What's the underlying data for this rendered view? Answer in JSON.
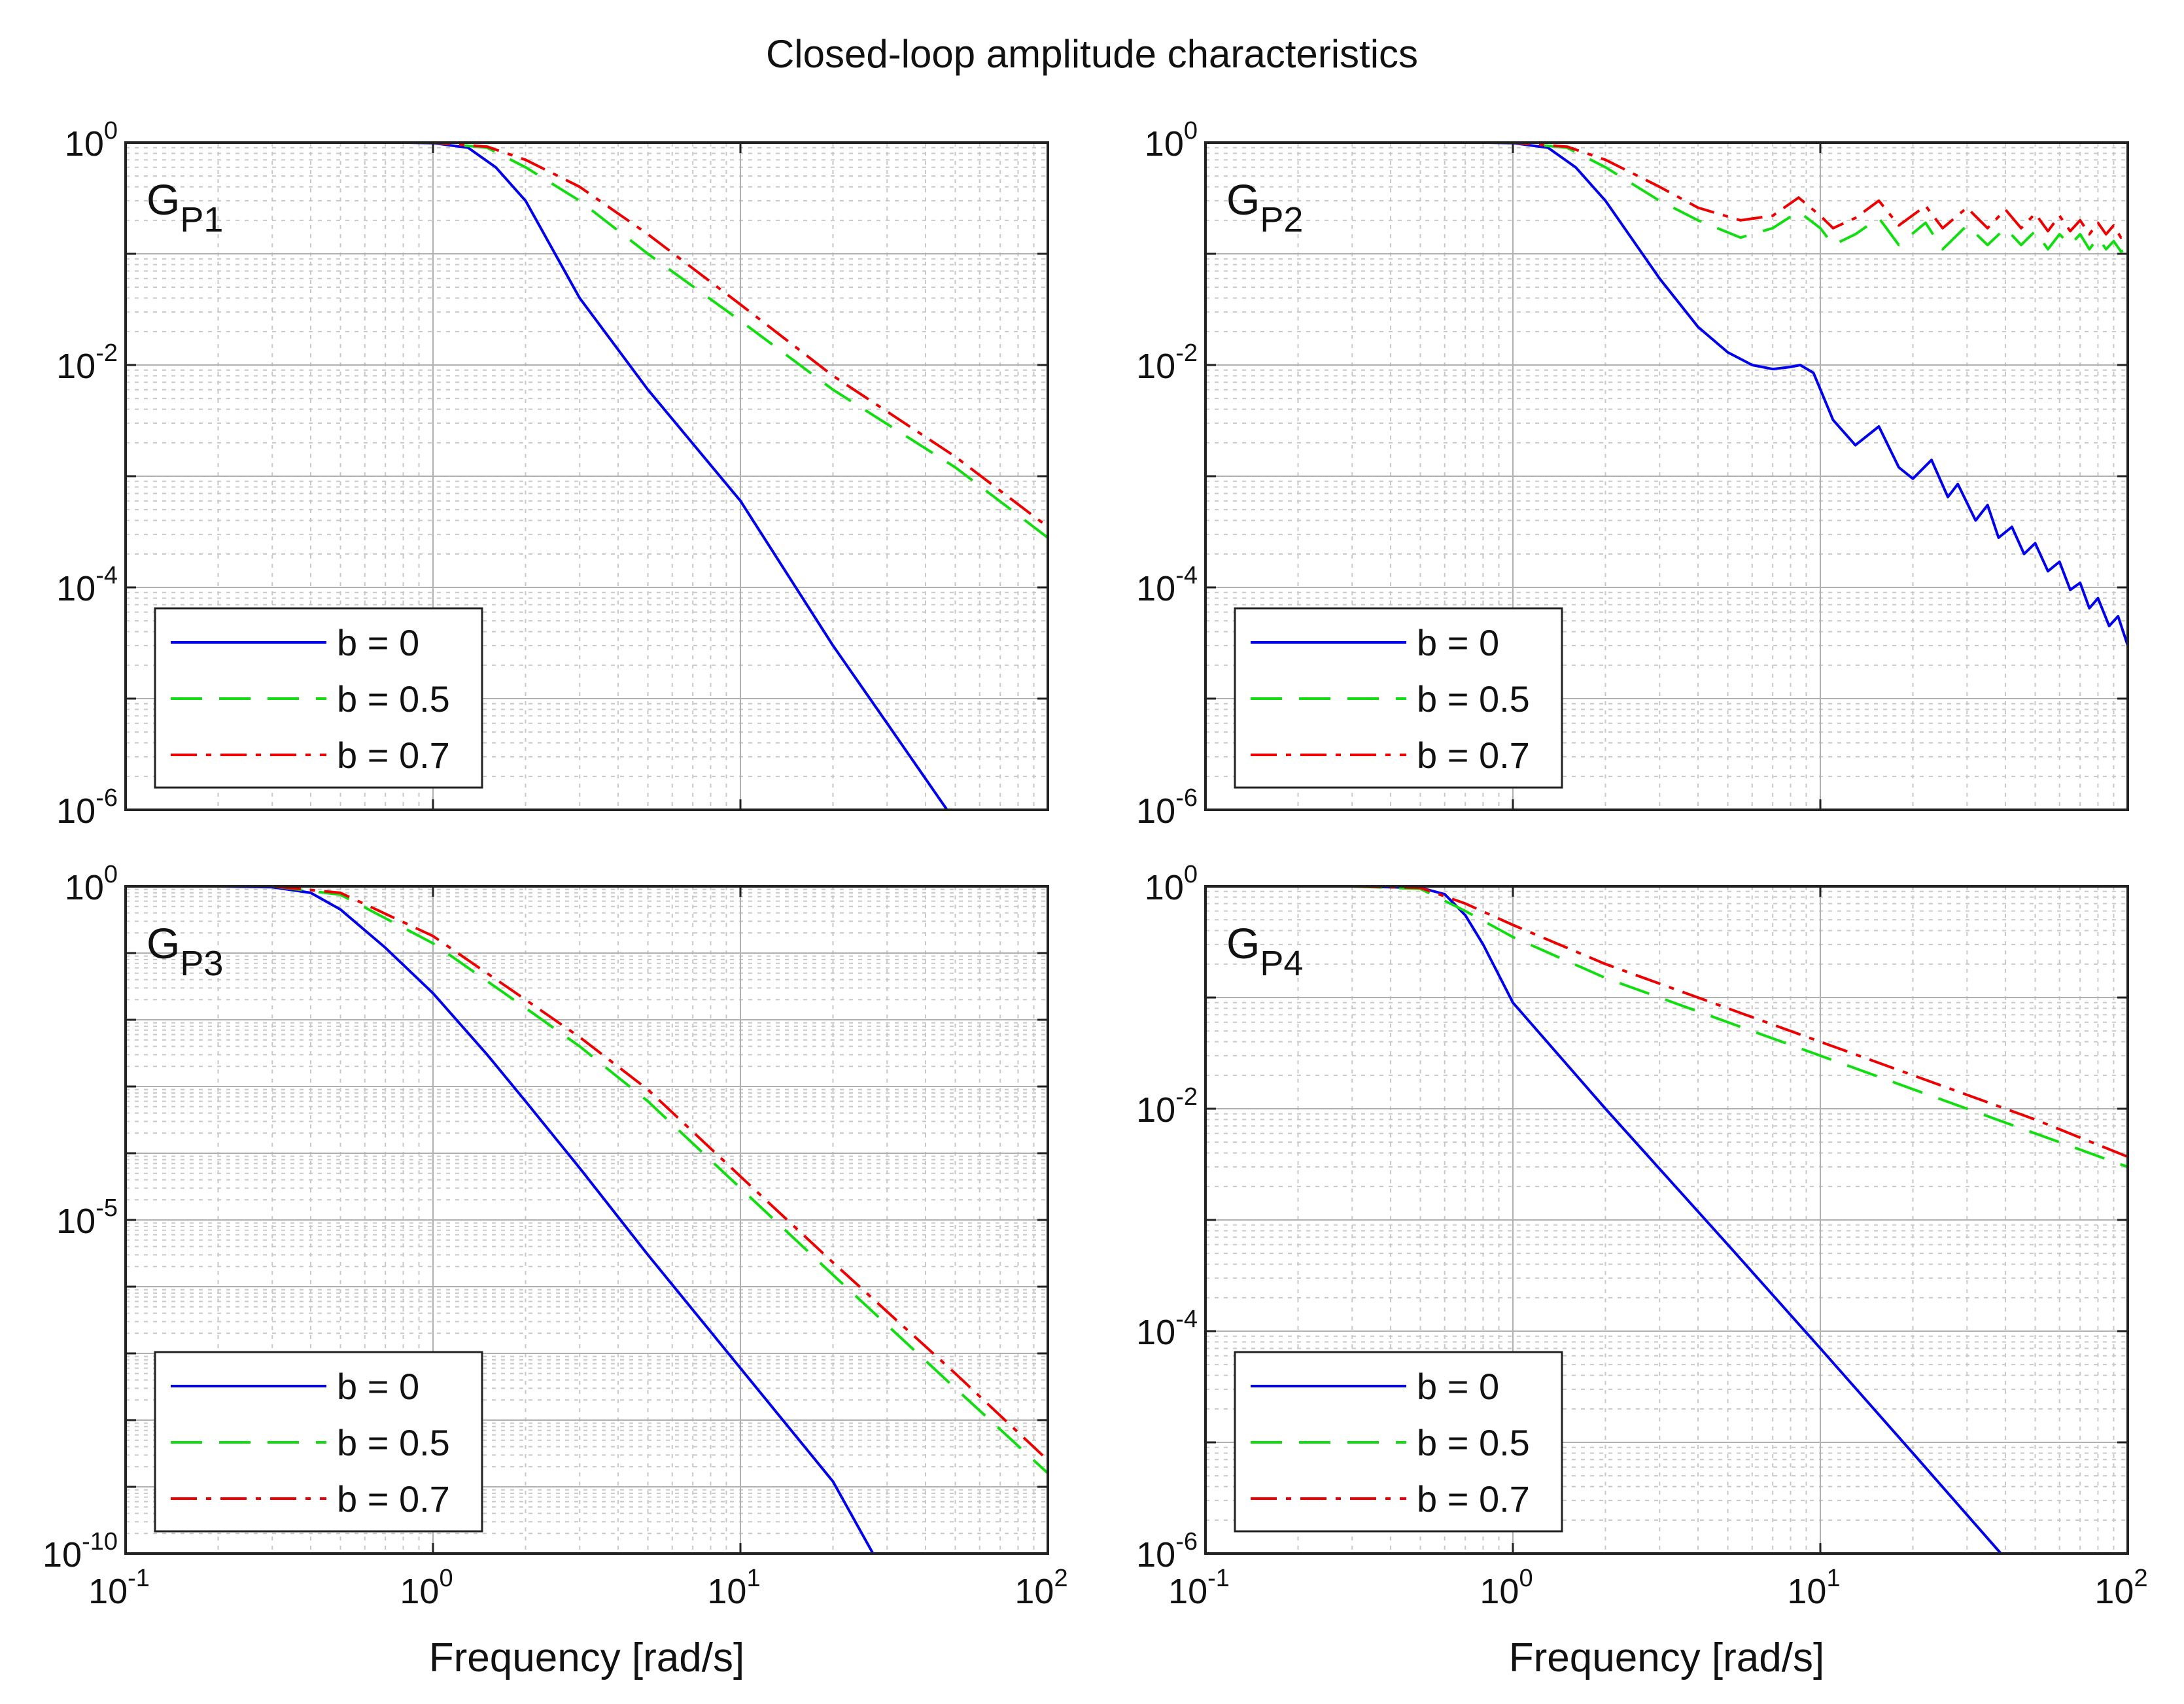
{
  "figure": {
    "title": "Closed-loop amplitude characteristics"
  },
  "chart_data": [
    {
      "type": "line",
      "panel": "top-left",
      "label_main": "G",
      "label_sub": "P1",
      "xlabel": "",
      "ylabel": "",
      "xscale": "log",
      "yscale": "log",
      "xlim": [
        0.1,
        100
      ],
      "ylim": [
        1e-06,
        1
      ],
      "grid": true,
      "legend_position": "bottom-left",
      "x_ticks": [
        {
          "base": "10",
          "exp": "-1"
        },
        {
          "base": "10",
          "exp": "0"
        },
        {
          "base": "10",
          "exp": "1"
        },
        {
          "base": "10",
          "exp": "2"
        }
      ],
      "y_ticks": [
        {
          "base": "10",
          "exp": "0"
        },
        {
          "base": "10",
          "exp": "-2"
        },
        {
          "base": "10",
          "exp": "-4"
        },
        {
          "base": "10",
          "exp": "-6"
        }
      ],
      "series": [
        {
          "name": "b = 0",
          "color": "#0000ee",
          "dash": "solid",
          "x": [
            0.1,
            0.3,
            0.5,
            0.8,
            1.0,
            1.3,
            1.6,
            2.0,
            3.0,
            5.0,
            10,
            20,
            30,
            47
          ],
          "y": [
            1.0,
            1.0,
            1.0,
            1.0,
            0.99,
            0.9,
            0.6,
            0.3,
            0.04,
            0.006,
            0.0006,
            3e-05,
            6e-06,
            1e-06
          ]
        },
        {
          "name": "b = 0.5",
          "color": "#11dd11",
          "dash": "dashed",
          "x": [
            0.1,
            0.5,
            1.0,
            1.5,
            2.0,
            3.0,
            5.0,
            10,
            20,
            50,
            100
          ],
          "y": [
            1.0,
            1.0,
            1.0,
            0.9,
            0.6,
            0.3,
            0.1,
            0.025,
            0.006,
            0.0012,
            0.00028
          ]
        },
        {
          "name": "b = 0.7",
          "color": "#ee0000",
          "dash": "dashdot",
          "x": [
            0.1,
            0.5,
            1.0,
            1.5,
            2.0,
            3.0,
            5.0,
            10,
            20,
            50,
            100
          ],
          "y": [
            1.0,
            1.0,
            1.0,
            0.92,
            0.7,
            0.4,
            0.15,
            0.035,
            0.008,
            0.0015,
            0.00035
          ]
        }
      ]
    },
    {
      "type": "line",
      "panel": "top-right",
      "label_main": "G",
      "label_sub": "P2",
      "xlabel": "",
      "ylabel": "",
      "xscale": "log",
      "yscale": "log",
      "xlim": [
        0.1,
        100
      ],
      "ylim": [
        1e-06,
        1
      ],
      "grid": true,
      "legend_position": "bottom-left",
      "x_ticks": [
        {
          "base": "10",
          "exp": "-1"
        },
        {
          "base": "10",
          "exp": "0"
        },
        {
          "base": "10",
          "exp": "1"
        },
        {
          "base": "10",
          "exp": "2"
        }
      ],
      "y_ticks": [
        {
          "base": "10",
          "exp": "0"
        },
        {
          "base": "10",
          "exp": "-2"
        },
        {
          "base": "10",
          "exp": "-4"
        },
        {
          "base": "10",
          "exp": "-6"
        }
      ],
      "series": [
        {
          "name": "b = 0",
          "color": "#0000ee",
          "dash": "solid",
          "x": [
            0.1,
            0.3,
            0.5,
            0.8,
            1.0,
            1.3,
            1.6,
            2.0,
            3.0,
            4.0,
            5.0,
            6.0,
            7.0,
            8.0,
            8.6,
            9.5,
            11.0,
            13.0,
            15.5,
            18.0,
            20.0,
            23.0,
            26.0,
            28.0,
            32.0,
            35.0,
            38.0,
            42.0,
            46.0,
            50.0,
            55.0,
            60.0,
            65.0,
            70.0,
            75.0,
            80.0,
            87.0,
            93.0,
            100
          ],
          "y": [
            1.0,
            1.0,
            1.0,
            1.0,
            0.99,
            0.9,
            0.6,
            0.3,
            0.06,
            0.022,
            0.013,
            0.01,
            0.0092,
            0.0096,
            0.01,
            0.0085,
            0.0032,
            0.0019,
            0.0028,
            0.0012,
            0.00095,
            0.0014,
            0.00065,
            0.00085,
            0.0004,
            0.00055,
            0.00028,
            0.00035,
            0.0002,
            0.00025,
            0.00014,
            0.00017,
            9.5e-05,
            0.00011,
            6.5e-05,
            8e-05,
            4.5e-05,
            5.5e-05,
            3e-05
          ]
        },
        {
          "name": "b = 0.5",
          "color": "#11dd11",
          "dash": "dashed",
          "x": [
            0.1,
            0.5,
            1.0,
            1.5,
            2.0,
            3.0,
            4.0,
            5.5,
            7.0,
            8.5,
            10.0,
            11.0,
            13.0,
            15.5,
            18.0,
            22.0,
            25.0,
            30.0,
            35.0,
            40.0,
            45.0,
            50.0,
            55.0,
            60.0,
            65.0,
            70.0,
            75.0,
            80.0,
            85.0,
            90.0,
            95.0,
            100
          ],
          "y": [
            1.0,
            1.0,
            1.0,
            0.9,
            0.6,
            0.3,
            0.2,
            0.14,
            0.17,
            0.24,
            0.17,
            0.12,
            0.15,
            0.21,
            0.12,
            0.19,
            0.11,
            0.18,
            0.12,
            0.17,
            0.12,
            0.16,
            0.11,
            0.15,
            0.12,
            0.15,
            0.11,
            0.14,
            0.11,
            0.13,
            0.105,
            0.11
          ]
        },
        {
          "name": "b = 0.7",
          "color": "#ee0000",
          "dash": "dashdot",
          "x": [
            0.1,
            0.5,
            1.0,
            1.5,
            2.0,
            3.0,
            4.0,
            5.5,
            7.0,
            8.5,
            10.0,
            11.0,
            13.0,
            15.5,
            18.0,
            22.0,
            25.0,
            30.0,
            35.0,
            40.0,
            45.0,
            50.0,
            55.0,
            60.0,
            65.0,
            70.0,
            75.0,
            80.0,
            85.0,
            90.0,
            95.0,
            100
          ],
          "y": [
            1.0,
            1.0,
            1.0,
            0.92,
            0.7,
            0.4,
            0.26,
            0.2,
            0.22,
            0.32,
            0.22,
            0.17,
            0.21,
            0.3,
            0.18,
            0.27,
            0.17,
            0.26,
            0.17,
            0.25,
            0.17,
            0.23,
            0.16,
            0.22,
            0.16,
            0.2,
            0.15,
            0.19,
            0.15,
            0.18,
            0.14,
            0.16
          ]
        }
      ]
    },
    {
      "type": "line",
      "panel": "bottom-left",
      "label_main": "G",
      "label_sub": "P3",
      "xlabel": "Frequency [rad/s]",
      "ylabel": "",
      "xscale": "log",
      "yscale": "log",
      "xlim": [
        0.1,
        100
      ],
      "ylim": [
        1e-10,
        1
      ],
      "grid": true,
      "legend_position": "bottom-left",
      "x_ticks": [
        {
          "base": "10",
          "exp": "-1"
        },
        {
          "base": "10",
          "exp": "0"
        },
        {
          "base": "10",
          "exp": "1"
        },
        {
          "base": "10",
          "exp": "2"
        }
      ],
      "y_ticks": [
        {
          "base": "10",
          "exp": "0"
        },
        {
          "base": "10",
          "exp": "-5"
        },
        {
          "base": "10",
          "exp": "-10"
        }
      ],
      "series": [
        {
          "name": "b = 0",
          "color": "#0000ee",
          "dash": "solid",
          "x": [
            0.1,
            0.2,
            0.3,
            0.4,
            0.5,
            0.7,
            1.0,
            1.5,
            2.0,
            3.0,
            5.0,
            10,
            20,
            27
          ],
          "y": [
            1.0,
            1.0,
            0.97,
            0.8,
            0.45,
            0.12,
            0.025,
            0.003,
            0.0006,
            6e-05,
            3e-06,
            6e-08,
            1.2e-09,
            1e-10
          ]
        },
        {
          "name": "b = 0.5",
          "color": "#11dd11",
          "dash": "dashed",
          "x": [
            0.1,
            0.3,
            0.5,
            1.0,
            2.0,
            3.0,
            5.0,
            10,
            20,
            50,
            100
          ],
          "y": [
            1.0,
            1.0,
            0.75,
            0.14,
            0.015,
            0.004,
            0.0006,
            3e-05,
            1.5e-06,
            3e-08,
            1.6e-09
          ]
        },
        {
          "name": "b = 0.7",
          "color": "#ee0000",
          "dash": "dashdot",
          "x": [
            0.1,
            0.3,
            0.5,
            1.0,
            2.0,
            3.0,
            5.0,
            10,
            20,
            50,
            100
          ],
          "y": [
            1.0,
            1.0,
            0.8,
            0.18,
            0.02,
            0.0055,
            0.0009,
            4.5e-05,
            2.3e-06,
            5e-08,
            2.5e-09
          ]
        }
      ]
    },
    {
      "type": "line",
      "panel": "bottom-right",
      "label_main": "G",
      "label_sub": "P4",
      "xlabel": "Frequency [rad/s]",
      "ylabel": "",
      "xscale": "log",
      "yscale": "log",
      "xlim": [
        0.1,
        100
      ],
      "ylim": [
        1e-06,
        1
      ],
      "grid": true,
      "legend_position": "bottom-left",
      "x_ticks": [
        {
          "base": "10",
          "exp": "-1"
        },
        {
          "base": "10",
          "exp": "0"
        },
        {
          "base": "10",
          "exp": "1"
        },
        {
          "base": "10",
          "exp": "2"
        }
      ],
      "y_ticks": [
        {
          "base": "10",
          "exp": "0"
        },
        {
          "base": "10",
          "exp": "-2"
        },
        {
          "base": "10",
          "exp": "-4"
        },
        {
          "base": "10",
          "exp": "-6"
        }
      ],
      "series": [
        {
          "name": "b = 0",
          "color": "#0000ee",
          "dash": "solid",
          "x": [
            0.1,
            0.3,
            0.5,
            0.6,
            0.7,
            0.8,
            1.0,
            2.0,
            5.0,
            10,
            20,
            40
          ],
          "y": [
            1.0,
            1.0,
            0.97,
            0.85,
            0.55,
            0.3,
            0.09,
            0.01,
            0.0006,
            7e-05,
            8e-06,
            9e-07
          ]
        },
        {
          "name": "b = 0.5",
          "color": "#11dd11",
          "dash": "dashed",
          "x": [
            0.1,
            0.3,
            0.5,
            0.7,
            1.0,
            2.0,
            5.0,
            10,
            20,
            50,
            100
          ],
          "y": [
            1.0,
            1.0,
            0.95,
            0.6,
            0.35,
            0.15,
            0.06,
            0.03,
            0.015,
            0.006,
            0.003
          ]
        },
        {
          "name": "b = 0.7",
          "color": "#ee0000",
          "dash": "dashdot",
          "x": [
            0.1,
            0.3,
            0.5,
            0.7,
            1.0,
            2.0,
            5.0,
            10,
            20,
            50,
            100
          ],
          "y": [
            1.0,
            1.0,
            0.97,
            0.7,
            0.45,
            0.2,
            0.08,
            0.04,
            0.02,
            0.008,
            0.0037
          ]
        }
      ]
    }
  ]
}
